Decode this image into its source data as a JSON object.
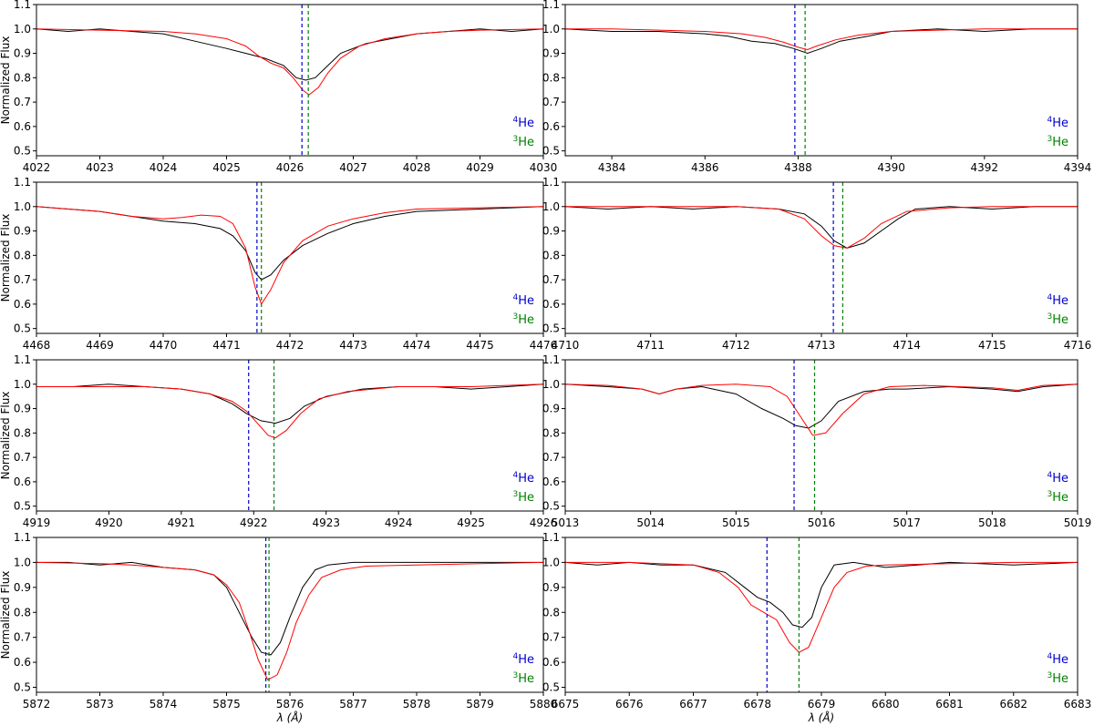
{
  "chart_data": [
    {
      "type": "line",
      "ylabel": "Normalized Flux",
      "xlabel": "",
      "xlim": [
        4022,
        4030
      ],
      "ylim": [
        0.48,
        1.1
      ],
      "xticks": [
        4022,
        4023,
        4024,
        4025,
        4026,
        4027,
        4028,
        4029,
        4030
      ],
      "yticks": [
        0.5,
        0.6,
        0.7,
        0.8,
        0.9,
        1.0,
        1.1
      ],
      "he4_line": 4026.19,
      "he3_line": 4026.29,
      "series": [
        {
          "color": "#000000",
          "x": [
            4022,
            4022.5,
            4023,
            4023.5,
            4024,
            4024.5,
            4025,
            4025.3,
            4025.6,
            4025.9,
            4026.1,
            4026.25,
            4026.4,
            4026.6,
            4026.8,
            4027.2,
            4027.6,
            4028,
            4028.5,
            4029,
            4029.5,
            4030
          ],
          "y": [
            1.0,
            0.99,
            1.0,
            0.99,
            0.98,
            0.95,
            0.92,
            0.9,
            0.88,
            0.85,
            0.8,
            0.79,
            0.8,
            0.85,
            0.9,
            0.94,
            0.96,
            0.98,
            0.99,
            1.0,
            0.99,
            1.0
          ]
        },
        {
          "color": "#ff0000",
          "x": [
            4022,
            4023,
            4024,
            4024.5,
            4025,
            4025.3,
            4025.5,
            4025.7,
            4025.9,
            4026.05,
            4026.2,
            4026.3,
            4026.45,
            4026.6,
            4026.8,
            4027.1,
            4027.5,
            4028,
            4028.5,
            4029,
            4030
          ],
          "y": [
            1.0,
            0.995,
            0.99,
            0.98,
            0.96,
            0.93,
            0.89,
            0.86,
            0.84,
            0.8,
            0.75,
            0.73,
            0.76,
            0.82,
            0.88,
            0.93,
            0.96,
            0.98,
            0.99,
            0.995,
            1.0
          ]
        }
      ],
      "legend": [
        "4He",
        "3He"
      ]
    },
    {
      "type": "line",
      "ylabel": "",
      "xlabel": "",
      "xlim": [
        4383,
        4394
      ],
      "ylim": [
        0.48,
        1.1
      ],
      "xticks": [
        4384,
        4386,
        4388,
        4390,
        4392,
        4394
      ],
      "yticks": [
        0.5,
        0.6,
        0.7,
        0.8,
        0.9,
        1.0,
        1.1
      ],
      "he4_line": 4387.93,
      "he3_line": 4388.15,
      "series": [
        {
          "color": "#000000",
          "x": [
            4383,
            4384,
            4385,
            4386,
            4386.5,
            4387,
            4387.5,
            4387.9,
            4388.2,
            4388.5,
            4388.9,
            4389.5,
            4390,
            4391,
            4392,
            4393,
            4394
          ],
          "y": [
            1.0,
            0.99,
            0.99,
            0.98,
            0.97,
            0.95,
            0.94,
            0.92,
            0.9,
            0.92,
            0.95,
            0.97,
            0.99,
            1.0,
            0.99,
            1.0,
            1.0
          ]
        },
        {
          "color": "#ff0000",
          "x": [
            4383,
            4384,
            4385,
            4386,
            4386.8,
            4387.3,
            4387.7,
            4388.0,
            4388.2,
            4388.4,
            4388.8,
            4389.3,
            4390,
            4391,
            4392,
            4393,
            4394
          ],
          "y": [
            1.0,
            1.0,
            0.995,
            0.99,
            0.98,
            0.965,
            0.945,
            0.925,
            0.915,
            0.93,
            0.955,
            0.975,
            0.99,
            0.995,
            1.0,
            1.0,
            1.0
          ]
        }
      ],
      "legend": [
        "4He",
        "3He"
      ]
    },
    {
      "type": "line",
      "ylabel": "Normalized Flux",
      "xlabel": "",
      "xlim": [
        4468,
        4476
      ],
      "ylim": [
        0.48,
        1.1
      ],
      "xticks": [
        4468,
        4469,
        4470,
        4471,
        4472,
        4473,
        4474,
        4475,
        4476
      ],
      "yticks": [
        0.5,
        0.6,
        0.7,
        0.8,
        0.9,
        1.0,
        1.1
      ],
      "he4_line": 4471.48,
      "he3_line": 4471.55,
      "series": [
        {
          "color": "#000000",
          "x": [
            4468,
            4468.5,
            4469,
            4469.5,
            4470,
            4470.5,
            4470.9,
            4471.1,
            4471.3,
            4471.45,
            4471.55,
            4471.7,
            4471.9,
            4472.2,
            4472.6,
            4473,
            4473.5,
            4474,
            4475,
            4476
          ],
          "y": [
            1.0,
            0.99,
            0.98,
            0.96,
            0.94,
            0.93,
            0.91,
            0.88,
            0.82,
            0.73,
            0.7,
            0.72,
            0.78,
            0.84,
            0.89,
            0.93,
            0.96,
            0.98,
            0.99,
            1.0
          ]
        },
        {
          "color": "#ff0000",
          "x": [
            4468,
            4468.5,
            4469,
            4469.5,
            4470,
            4470.3,
            4470.6,
            4470.9,
            4471.1,
            4471.3,
            4471.45,
            4471.55,
            4471.7,
            4471.9,
            4472.2,
            4472.6,
            4473,
            4473.5,
            4474,
            4475,
            4476
          ],
          "y": [
            1.0,
            0.99,
            0.98,
            0.96,
            0.95,
            0.955,
            0.965,
            0.96,
            0.93,
            0.83,
            0.67,
            0.6,
            0.66,
            0.77,
            0.86,
            0.92,
            0.95,
            0.975,
            0.99,
            0.995,
            1.0
          ]
        }
      ],
      "legend": [
        "4He",
        "3He"
      ]
    },
    {
      "type": "line",
      "ylabel": "",
      "xlabel": "",
      "xlim": [
        4710,
        4716
      ],
      "ylim": [
        0.48,
        1.1
      ],
      "xticks": [
        4710,
        4711,
        4712,
        4713,
        4714,
        4715,
        4716
      ],
      "yticks": [
        0.5,
        0.6,
        0.7,
        0.8,
        0.9,
        1.0,
        1.1
      ],
      "he4_line": 4713.14,
      "he3_line": 4713.25,
      "series": [
        {
          "color": "#000000",
          "x": [
            4710,
            4710.5,
            4711,
            4711.5,
            4712,
            4712.5,
            4712.8,
            4713.0,
            4713.15,
            4713.3,
            4713.5,
            4713.7,
            4713.9,
            4714.1,
            4714.5,
            4715,
            4715.5,
            4716
          ],
          "y": [
            1.0,
            0.99,
            1.0,
            0.99,
            1.0,
            0.99,
            0.97,
            0.92,
            0.86,
            0.83,
            0.85,
            0.9,
            0.95,
            0.99,
            1.0,
            0.99,
            1.0,
            1.0
          ]
        },
        {
          "color": "#ff0000",
          "x": [
            4710,
            4711,
            4712,
            4712.5,
            4712.8,
            4713.0,
            4713.15,
            4713.3,
            4713.5,
            4713.7,
            4714.0,
            4714.5,
            4715,
            4716
          ],
          "y": [
            1.0,
            1.0,
            1.0,
            0.99,
            0.95,
            0.88,
            0.84,
            0.83,
            0.87,
            0.93,
            0.98,
            0.995,
            1.0,
            1.0
          ]
        }
      ],
      "legend": [
        "4He",
        "3He"
      ]
    },
    {
      "type": "line",
      "ylabel": "Normalized Flux",
      "xlabel": "",
      "xlim": [
        4919,
        4926
      ],
      "ylim": [
        0.48,
        1.1
      ],
      "xticks": [
        4919,
        4920,
        4921,
        4922,
        4923,
        4924,
        4925,
        4926
      ],
      "yticks": [
        0.5,
        0.6,
        0.7,
        0.8,
        0.9,
        1.0,
        1.1
      ],
      "he4_line": 4921.93,
      "he3_line": 4922.28,
      "series": [
        {
          "color": "#000000",
          "x": [
            4919,
            4919.5,
            4920,
            4920.5,
            4921,
            4921.4,
            4921.7,
            4921.9,
            4922.1,
            4922.3,
            4922.5,
            4922.7,
            4923,
            4923.5,
            4924,
            4924.5,
            4925,
            4925.5,
            4926
          ],
          "y": [
            0.99,
            0.99,
            1.0,
            0.99,
            0.98,
            0.96,
            0.92,
            0.88,
            0.85,
            0.84,
            0.86,
            0.91,
            0.95,
            0.98,
            0.99,
            0.99,
            0.98,
            0.99,
            1.0
          ]
        },
        {
          "color": "#ff0000",
          "x": [
            4919,
            4920,
            4920.5,
            4921,
            4921.4,
            4921.7,
            4921.9,
            4922.05,
            4922.2,
            4922.3,
            4922.45,
            4922.65,
            4922.9,
            4923.3,
            4924,
            4925,
            4926
          ],
          "y": [
            0.99,
            0.99,
            0.99,
            0.98,
            0.96,
            0.93,
            0.89,
            0.84,
            0.79,
            0.78,
            0.81,
            0.88,
            0.94,
            0.97,
            0.99,
            0.99,
            1.0
          ]
        }
      ],
      "legend": [
        "4He",
        "3He"
      ]
    },
    {
      "type": "line",
      "ylabel": "",
      "xlabel": "",
      "xlim": [
        5013,
        5019
      ],
      "ylim": [
        0.48,
        1.1
      ],
      "xticks": [
        5013,
        5014,
        5015,
        5016,
        5017,
        5018,
        5019
      ],
      "yticks": [
        0.5,
        0.6,
        0.7,
        0.8,
        0.9,
        1.0,
        1.1
      ],
      "he4_line": 5015.68,
      "he3_line": 5015.92,
      "series": [
        {
          "color": "#000000",
          "x": [
            5013,
            5013.5,
            5013.9,
            5014.1,
            5014.3,
            5014.6,
            5015.0,
            5015.3,
            5015.55,
            5015.7,
            5015.85,
            5016.0,
            5016.2,
            5016.5,
            5016.8,
            5017.0,
            5017.5,
            5018,
            5018.3,
            5018.6,
            5019
          ],
          "y": [
            1.0,
            0.99,
            0.98,
            0.96,
            0.98,
            0.99,
            0.96,
            0.9,
            0.86,
            0.83,
            0.82,
            0.85,
            0.93,
            0.97,
            0.98,
            0.98,
            0.99,
            0.98,
            0.97,
            0.99,
            1.0
          ]
        },
        {
          "color": "#ff0000",
          "x": [
            5013,
            5013.5,
            5013.9,
            5014.1,
            5014.3,
            5014.6,
            5015,
            5015.4,
            5015.6,
            5015.75,
            5015.9,
            5016.05,
            5016.25,
            5016.5,
            5016.8,
            5017.2,
            5017.6,
            5018,
            5018.3,
            5018.6,
            5019
          ],
          "y": [
            1.0,
            0.995,
            0.98,
            0.96,
            0.98,
            0.995,
            1.0,
            0.99,
            0.95,
            0.87,
            0.79,
            0.8,
            0.88,
            0.96,
            0.99,
            0.995,
            0.99,
            0.985,
            0.975,
            0.995,
            1.0
          ]
        }
      ],
      "legend": [
        "4He",
        "3He"
      ]
    },
    {
      "type": "line",
      "ylabel": "Normalized Flux",
      "xlabel": "λ (Å)",
      "xlim": [
        5872,
        5880
      ],
      "ylim": [
        0.48,
        1.1
      ],
      "xticks": [
        5872,
        5873,
        5874,
        5875,
        5876,
        5877,
        5878,
        5879,
        5880
      ],
      "yticks": [
        0.5,
        0.6,
        0.7,
        0.8,
        0.9,
        1.0,
        1.1
      ],
      "he4_line": 5875.62,
      "he3_line": 5875.67,
      "series": [
        {
          "color": "#000000",
          "x": [
            5872,
            5872.5,
            5873,
            5873.5,
            5874,
            5874.5,
            5874.8,
            5875.0,
            5875.2,
            5875.4,
            5875.55,
            5875.7,
            5875.85,
            5876.0,
            5876.2,
            5876.4,
            5876.6,
            5877,
            5877.5,
            5878,
            5879,
            5880
          ],
          "y": [
            1.0,
            1.0,
            0.99,
            1.0,
            0.98,
            0.97,
            0.95,
            0.9,
            0.8,
            0.7,
            0.64,
            0.63,
            0.68,
            0.78,
            0.9,
            0.97,
            0.99,
            1.0,
            1.0,
            1.0,
            1.0,
            1.0
          ]
        },
        {
          "color": "#ff0000",
          "x": [
            5872,
            5873,
            5873.5,
            5874,
            5874.5,
            5874.8,
            5875.0,
            5875.2,
            5875.35,
            5875.5,
            5875.65,
            5875.8,
            5875.95,
            5876.1,
            5876.3,
            5876.5,
            5876.8,
            5877.2,
            5878,
            5879,
            5880
          ],
          "y": [
            1.0,
            0.995,
            0.99,
            0.98,
            0.97,
            0.95,
            0.91,
            0.84,
            0.73,
            0.61,
            0.53,
            0.55,
            0.64,
            0.76,
            0.87,
            0.94,
            0.97,
            0.985,
            0.99,
            0.995,
            1.0
          ]
        }
      ],
      "legend": [
        "4He",
        "3He"
      ]
    },
    {
      "type": "line",
      "ylabel": "",
      "xlabel": "λ (Å)",
      "xlim": [
        6675,
        6683
      ],
      "ylim": [
        0.48,
        1.1
      ],
      "xticks": [
        6675,
        6676,
        6677,
        6678,
        6679,
        6680,
        6681,
        6682,
        6683
      ],
      "yticks": [
        0.5,
        0.6,
        0.7,
        0.8,
        0.9,
        1.0,
        1.1
      ],
      "he4_line": 6678.15,
      "he3_line": 6678.65,
      "series": [
        {
          "color": "#000000",
          "x": [
            6675,
            6675.5,
            6676,
            6676.5,
            6677,
            6677.5,
            6677.8,
            6678.0,
            6678.2,
            6678.4,
            6678.55,
            6678.7,
            6678.85,
            6679.0,
            6679.2,
            6679.5,
            6680,
            6680.5,
            6681,
            6682,
            6683
          ],
          "y": [
            1.0,
            0.99,
            1.0,
            0.99,
            0.99,
            0.96,
            0.9,
            0.86,
            0.84,
            0.8,
            0.75,
            0.74,
            0.78,
            0.9,
            0.99,
            1.0,
            0.98,
            0.99,
            1.0,
            0.99,
            1.0
          ]
        },
        {
          "color": "#ff0000",
          "x": [
            6675,
            6676,
            6677,
            6677.4,
            6677.7,
            6677.9,
            6678.1,
            6678.3,
            6678.5,
            6678.65,
            6678.8,
            6679.0,
            6679.2,
            6679.4,
            6679.7,
            6680,
            6681,
            6682,
            6683
          ],
          "y": [
            1.0,
            1.0,
            0.99,
            0.96,
            0.9,
            0.83,
            0.8,
            0.77,
            0.68,
            0.64,
            0.66,
            0.78,
            0.9,
            0.96,
            0.985,
            0.99,
            0.995,
            1.0,
            1.0
          ]
        }
      ],
      "legend": [
        "4He",
        "3He"
      ]
    }
  ]
}
